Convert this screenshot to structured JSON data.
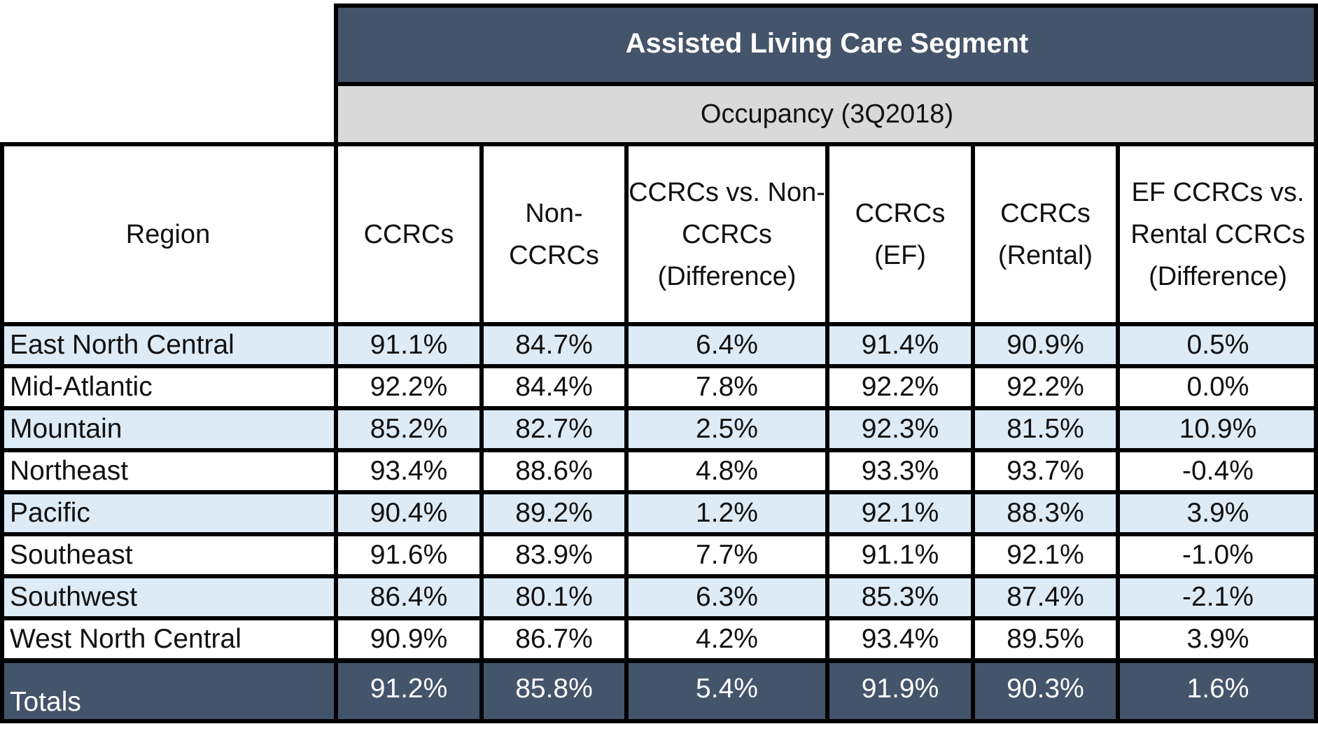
{
  "chart_data": {
    "type": "table",
    "title": "Assisted Living Care Segment",
    "subtitle": "Occupancy (3Q2018)",
    "columns": [
      "Region",
      "CCRCs",
      "Non-\nCCRCs",
      "CCRCs vs. Non-\nCCRCs\n(Difference)",
      "CCRCs\n(EF)",
      "CCRCs\n(Rental)",
      "EF CCRCs vs.\nRental CCRCs\n(Difference)"
    ],
    "rows": [
      [
        "East North Central",
        "91.1%",
        "84.7%",
        "6.4%",
        "91.4%",
        "90.9%",
        "0.5%"
      ],
      [
        "Mid-Atlantic",
        "92.2%",
        "84.4%",
        "7.8%",
        "92.2%",
        "92.2%",
        "0.0%"
      ],
      [
        "Mountain",
        "85.2%",
        "82.7%",
        "2.5%",
        "92.3%",
        "81.5%",
        "10.9%"
      ],
      [
        "Northeast",
        "93.4%",
        "88.6%",
        "4.8%",
        "93.3%",
        "93.7%",
        "-0.4%"
      ],
      [
        "Pacific",
        "90.4%",
        "89.2%",
        "1.2%",
        "92.1%",
        "88.3%",
        "3.9%"
      ],
      [
        "Southeast",
        "91.6%",
        "83.9%",
        "7.7%",
        "91.1%",
        "92.1%",
        "-1.0%"
      ],
      [
        "Southwest",
        "86.4%",
        "80.1%",
        "6.3%",
        "85.3%",
        "87.4%",
        "-2.1%"
      ],
      [
        "West North Central",
        "90.9%",
        "86.7%",
        "4.2%",
        "93.4%",
        "89.5%",
        "3.9%"
      ]
    ],
    "totals": [
      "Totals",
      "91.2%",
      "85.8%",
      "5.4%",
      "91.9%",
      "90.3%",
      "1.6%"
    ],
    "colors": {
      "header_band": "#44546a",
      "subheader_band": "#d9d9d9",
      "alt_row": "#ddebf7",
      "totals_row": "#44546a"
    }
  }
}
